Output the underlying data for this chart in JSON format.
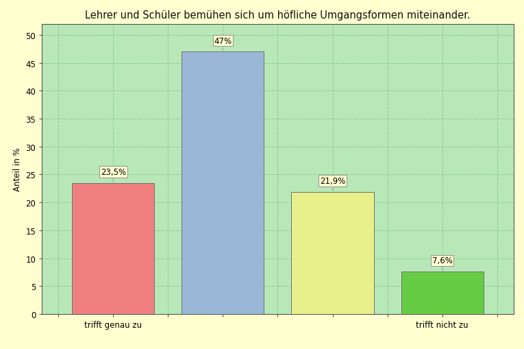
{
  "title": "Lehrer und Schüler bemühen sich um höfliche Umgangsformen miteinander.",
  "categories": [
    "trifft genau zu",
    "",
    "",
    "trifft nicht zu"
  ],
  "values": [
    23.5,
    47.0,
    21.9,
    7.6
  ],
  "labels": [
    "23,5%",
    "47%",
    "21,9%",
    "7,6%"
  ],
  "bar_colors": [
    "#f08080",
    "#9ab7d8",
    "#e8f08c",
    "#66cc44"
  ],
  "ylabel": "Anteil in %",
  "ylim": [
    0,
    52
  ],
  "yticks": [
    0,
    5,
    10,
    15,
    20,
    25,
    30,
    35,
    40,
    45,
    50
  ],
  "background_color": "#ffffd0",
  "plot_background": "#b8e8b8",
  "grid_color": "#88cc88",
  "title_fontsize": 10.5,
  "label_fontsize": 8.5,
  "tick_fontsize": 8.5,
  "ylabel_fontsize": 8.5,
  "bar_edge_color": "#707070",
  "bar_edge_width": 0.7,
  "x_positions": [
    1,
    2,
    3,
    4
  ],
  "bar_width": 0.75,
  "xlim": [
    0.35,
    4.65
  ]
}
